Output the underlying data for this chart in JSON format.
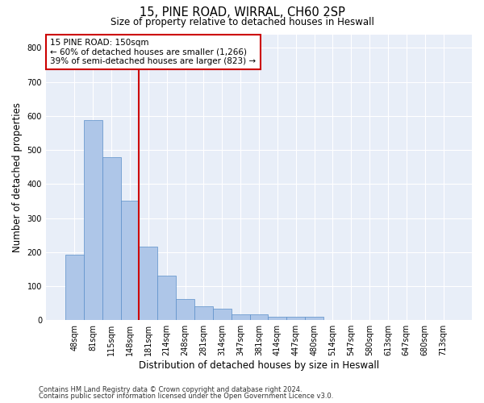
{
  "title_line1": "15, PINE ROAD, WIRRAL, CH60 2SP",
  "title_line2": "Size of property relative to detached houses in Heswall",
  "xlabel": "Distribution of detached houses by size in Heswall",
  "ylabel": "Number of detached properties",
  "categories": [
    "48sqm",
    "81sqm",
    "115sqm",
    "148sqm",
    "181sqm",
    "214sqm",
    "248sqm",
    "281sqm",
    "314sqm",
    "347sqm",
    "381sqm",
    "414sqm",
    "447sqm",
    "480sqm",
    "514sqm",
    "547sqm",
    "580sqm",
    "613sqm",
    "647sqm",
    "680sqm",
    "713sqm"
  ],
  "values": [
    192,
    588,
    480,
    352,
    215,
    130,
    63,
    40,
    33,
    16,
    16,
    10,
    10,
    10,
    0,
    0,
    0,
    0,
    0,
    0,
    0
  ],
  "bar_color": "#aec6e8",
  "bar_edge_color": "#5b8fc9",
  "bar_width": 1.0,
  "vline_x": 3.5,
  "vline_color": "#cc0000",
  "annotation_text": "15 PINE ROAD: 150sqm\n← 60% of detached houses are smaller (1,266)\n39% of semi-detached houses are larger (823) →",
  "annotation_box_color": "white",
  "annotation_box_edge": "#cc0000",
  "ylim": [
    0,
    840
  ],
  "yticks": [
    0,
    100,
    200,
    300,
    400,
    500,
    600,
    700,
    800
  ],
  "background_color": "#e8eef8",
  "grid_color": "white",
  "footer_line1": "Contains HM Land Registry data © Crown copyright and database right 2024.",
  "footer_line2": "Contains public sector information licensed under the Open Government Licence v3.0."
}
